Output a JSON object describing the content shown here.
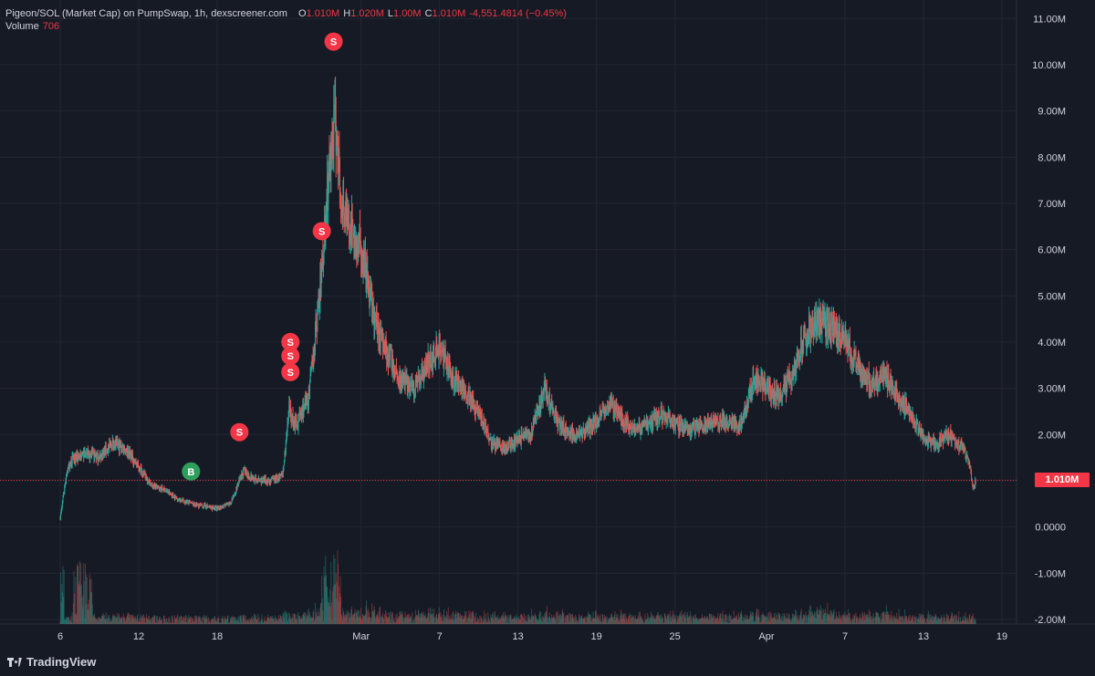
{
  "header": {
    "title": "Pigeon/SOL (Market Cap) on PumpSwap, 1h, dexscreener.com",
    "o_label": "O",
    "o_value": "1.010M",
    "h_label": "H",
    "h_value": "1.020M",
    "l_label": "L",
    "l_value": "1.00M",
    "c_label": "C",
    "c_value": "1.010M",
    "change": "-4,551.4814 (−0.45%)",
    "volume_label": "Volume",
    "volume_value": "706"
  },
  "current_price": {
    "label": "1.010M",
    "value": 1.01
  },
  "branding": {
    "name": "TradingView"
  },
  "colors": {
    "background": "#161a25",
    "grid": "#242733",
    "up": "#26a69a",
    "down": "#ef5350",
    "sell_marker": "#f23645",
    "buy_marker": "#2e9e5b",
    "price_line": "#f23645"
  },
  "chart_data": {
    "type": "candlestick",
    "x_axis": {
      "ticks": [
        "6",
        "12",
        "18",
        "Mar",
        "7",
        "13",
        "19",
        "25",
        "Apr",
        "7",
        "13",
        "19"
      ],
      "tick_days": [
        6,
        12,
        18,
        29,
        35,
        41,
        47,
        53,
        60,
        66,
        72,
        78
      ]
    },
    "y_axis": {
      "unit": "M",
      "range": [
        -2.1,
        11.4
      ],
      "ticks": [
        "11.00M",
        "10.00M",
        "9.00M",
        "8.00M",
        "7.00M",
        "6.00M",
        "5.00M",
        "4.00M",
        "3.00M",
        "2.00M",
        "1.00M",
        "0.0000",
        "-1.00M",
        "-2.00M"
      ],
      "tick_values": [
        11,
        10,
        9,
        8,
        7,
        6,
        5,
        4,
        3,
        2,
        1,
        0,
        -1,
        -2
      ]
    },
    "x_range_days": [
      5.5,
      80.5
    ],
    "series_profile": [
      {
        "day": 6,
        "mc": 0.2
      },
      {
        "day": 6.5,
        "mc": 1.2
      },
      {
        "day": 7,
        "mc": 1.5
      },
      {
        "day": 8,
        "mc": 1.6
      },
      {
        "day": 9,
        "mc": 1.5
      },
      {
        "day": 10,
        "mc": 1.8
      },
      {
        "day": 11,
        "mc": 1.7
      },
      {
        "day": 12,
        "mc": 1.3
      },
      {
        "day": 13,
        "mc": 0.9
      },
      {
        "day": 14,
        "mc": 0.8
      },
      {
        "day": 15,
        "mc": 0.6
      },
      {
        "day": 16,
        "mc": 0.5
      },
      {
        "day": 17,
        "mc": 0.45
      },
      {
        "day": 18,
        "mc": 0.4
      },
      {
        "day": 19,
        "mc": 0.5
      },
      {
        "day": 20,
        "mc": 1.2
      },
      {
        "day": 21,
        "mc": 1.0
      },
      {
        "day": 22,
        "mc": 1.0
      },
      {
        "day": 23,
        "mc": 1.1
      },
      {
        "day": 23.5,
        "mc": 2.5
      },
      {
        "day": 24,
        "mc": 2.2
      },
      {
        "day": 25,
        "mc": 2.8
      },
      {
        "day": 26,
        "mc": 5.5
      },
      {
        "day": 26.5,
        "mc": 7.5
      },
      {
        "day": 27,
        "mc": 8.8
      },
      {
        "day": 27.5,
        "mc": 7.2
      },
      {
        "day": 28,
        "mc": 6.5
      },
      {
        "day": 29,
        "mc": 6.0
      },
      {
        "day": 30,
        "mc": 4.5
      },
      {
        "day": 31,
        "mc": 3.8
      },
      {
        "day": 32,
        "mc": 3.2
      },
      {
        "day": 33,
        "mc": 3.0
      },
      {
        "day": 34,
        "mc": 3.5
      },
      {
        "day": 35,
        "mc": 3.9
      },
      {
        "day": 36,
        "mc": 3.2
      },
      {
        "day": 37,
        "mc": 2.9
      },
      {
        "day": 38,
        "mc": 2.5
      },
      {
        "day": 39,
        "mc": 1.8
      },
      {
        "day": 40,
        "mc": 1.7
      },
      {
        "day": 41,
        "mc": 1.9
      },
      {
        "day": 42,
        "mc": 2.0
      },
      {
        "day": 43,
        "mc": 3.0
      },
      {
        "day": 44,
        "mc": 2.3
      },
      {
        "day": 45,
        "mc": 2.0
      },
      {
        "day": 46,
        "mc": 2.0
      },
      {
        "day": 47,
        "mc": 2.3
      },
      {
        "day": 48,
        "mc": 2.7
      },
      {
        "day": 49,
        "mc": 2.3
      },
      {
        "day": 50,
        "mc": 2.1
      },
      {
        "day": 52,
        "mc": 2.4
      },
      {
        "day": 54,
        "mc": 2.1
      },
      {
        "day": 56,
        "mc": 2.3
      },
      {
        "day": 58,
        "mc": 2.2
      },
      {
        "day": 59,
        "mc": 3.2
      },
      {
        "day": 60,
        "mc": 3.0
      },
      {
        "day": 61,
        "mc": 2.8
      },
      {
        "day": 62,
        "mc": 3.3
      },
      {
        "day": 63,
        "mc": 4.2
      },
      {
        "day": 64,
        "mc": 4.5
      },
      {
        "day": 65,
        "mc": 4.3
      },
      {
        "day": 66,
        "mc": 4.1
      },
      {
        "day": 67,
        "mc": 3.4
      },
      {
        "day": 68,
        "mc": 3.1
      },
      {
        "day": 69,
        "mc": 3.3
      },
      {
        "day": 70,
        "mc": 2.8
      },
      {
        "day": 71,
        "mc": 2.5
      },
      {
        "day": 72,
        "mc": 1.9
      },
      {
        "day": 73,
        "mc": 1.8
      },
      {
        "day": 74,
        "mc": 2.0
      },
      {
        "day": 75,
        "mc": 1.7
      },
      {
        "day": 75.5,
        "mc": 1.4
      },
      {
        "day": 75.8,
        "mc": 0.8
      },
      {
        "day": 76,
        "mc": 1.01
      }
    ],
    "trade_markers": [
      {
        "type": "S",
        "day": 26.9,
        "mc": 10.5
      },
      {
        "type": "S",
        "day": 26.0,
        "mc": 6.4
      },
      {
        "type": "S",
        "day": 23.6,
        "mc": 4.0
      },
      {
        "type": "S",
        "day": 23.6,
        "mc": 3.7
      },
      {
        "type": "S",
        "day": 23.6,
        "mc": 3.35
      },
      {
        "type": "S",
        "day": 19.7,
        "mc": 2.05
      },
      {
        "type": "B",
        "day": 16.0,
        "mc": 1.2
      }
    ]
  }
}
